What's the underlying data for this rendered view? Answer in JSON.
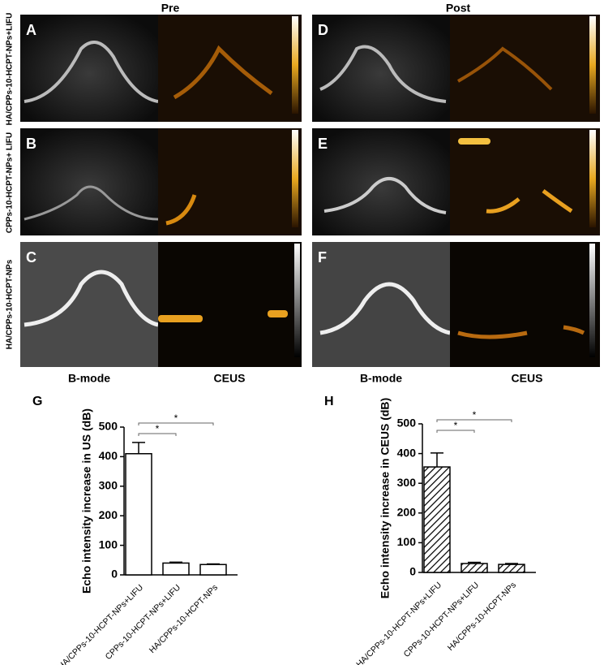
{
  "labels": {
    "pre": "Pre",
    "post": "Post"
  },
  "rows": [
    "HA/CPPs-10-HCPT-NPs+LIFU",
    "CPPs-10-HCPT-NPs+ LIFU",
    "HA/CPPs-10-HCPT-NPs"
  ],
  "panels": [
    "A",
    "B",
    "C",
    "D",
    "E",
    "F"
  ],
  "columns": [
    "B-mode",
    "CEUS",
    "B-mode",
    "CEUS"
  ],
  "chart_data": [
    {
      "type": "bar",
      "panel": "G",
      "ylabel": "Echo intensity increase in US (dB)",
      "categories": [
        "HA/CPPs-10-HCPT-NPs+LIFU",
        "CPPs-10-HCPT-NPs+LIFU",
        "HA/CPPs-10-HCPT-NPs"
      ],
      "values": [
        410,
        40,
        35
      ],
      "errors": [
        38,
        3,
        2
      ],
      "color": "#ffffff",
      "hatch": false,
      "ylim": [
        0,
        500
      ],
      "yticks": [
        0,
        100,
        200,
        300,
        400,
        500
      ],
      "annotations": [
        "*",
        "*"
      ]
    },
    {
      "type": "bar",
      "panel": "H",
      "ylabel": "Echo intensity increase in CEUS (dB)",
      "categories": [
        "HA/CPPs-10-HCPT-NPs+LIFU",
        "CPPs-10-HCPT-NPs+LIFU",
        "HA/CPPs-10-HCPT-NPs"
      ],
      "values": [
        355,
        30,
        27
      ],
      "errors": [
        47,
        4,
        3
      ],
      "color": "#ffffff",
      "hatch": true,
      "ylim": [
        0,
        500
      ],
      "yticks": [
        0,
        100,
        200,
        300,
        400,
        500
      ],
      "annotations": [
        "*",
        "*"
      ]
    }
  ]
}
